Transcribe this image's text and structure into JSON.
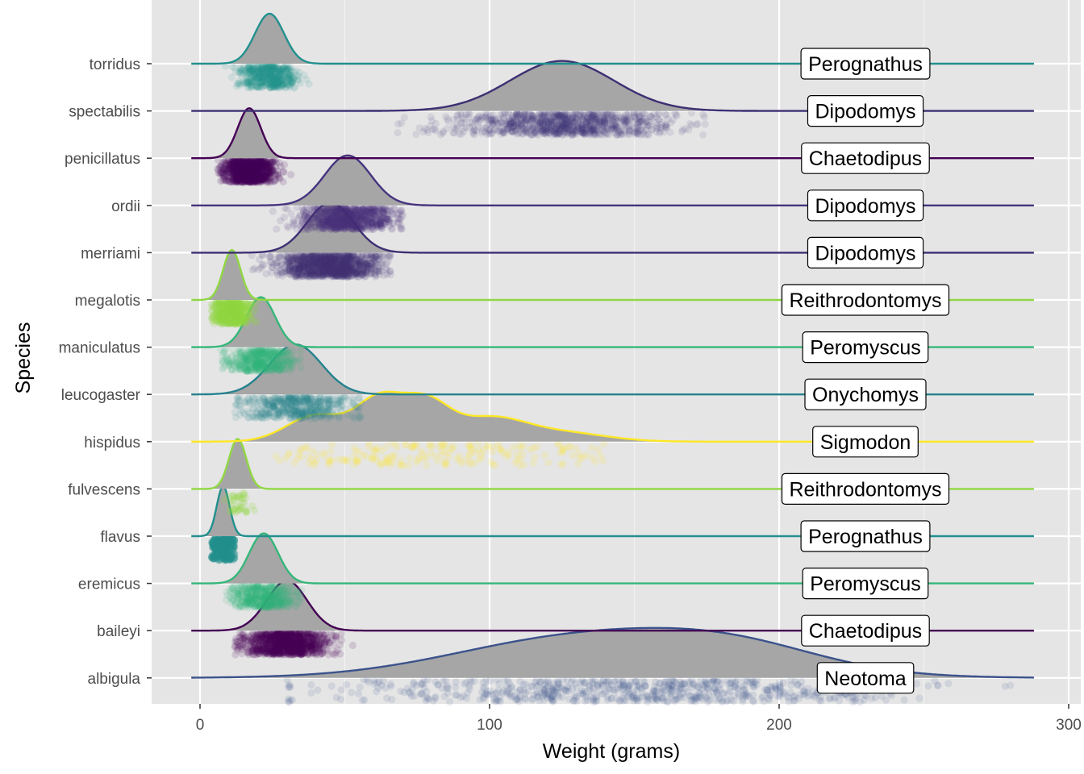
{
  "chart_data": {
    "type": "ridgeline",
    "xlabel": "Weight (grams)",
    "ylabel": "Species",
    "xlim": [
      -17,
      301
    ],
    "x_ticks": [
      0,
      100,
      200,
      300
    ],
    "x_tick_labels": [
      "0",
      "100",
      "200",
      "300"
    ],
    "grid": true,
    "background": "#e5e5e5",
    "density_fill": "#a6a6a6",
    "series": [
      {
        "species": "albigula",
        "genus": "Neotoma",
        "color": "#3b528b",
        "peaks": [
          [
            120,
            40,
            0.15
          ],
          [
            155,
            45,
            0.15
          ],
          [
            185,
            30,
            0.12
          ]
        ],
        "bandwidth": 10,
        "points_range": [
          30,
          280
        ],
        "opacity": 0.12,
        "n_points": 700
      },
      {
        "species": "baileyi",
        "genus": "Chaetodipus",
        "color": "#440154",
        "peaks": [
          [
            30,
            7,
            1.0
          ]
        ],
        "bandwidth": 7,
        "points_range": [
          12,
          56
        ],
        "opacity": 0.14,
        "n_points": 1000
      },
      {
        "species": "eremicus",
        "genus": "Peromyscus",
        "color": "#35b779",
        "peaks": [
          [
            22,
            5,
            1.0
          ]
        ],
        "bandwidth": 5,
        "points_range": [
          9,
          35
        ],
        "opacity": 0.12,
        "n_points": 500
      },
      {
        "species": "flavus",
        "genus": "Perognathus",
        "color": "#21908d",
        "peaks": [
          [
            8,
            2.2,
            1.0
          ]
        ],
        "bandwidth": 2.2,
        "points_range": [
          4,
          12
        ],
        "opacity": 0.35,
        "n_points": 300
      },
      {
        "species": "fulvescens",
        "genus": "Reithrodontomys",
        "color": "#90d743",
        "peaks": [
          [
            13,
            3,
            1.0
          ]
        ],
        "bandwidth": 3,
        "points_range": [
          7,
          20
        ],
        "opacity": 0.2,
        "n_points": 40
      },
      {
        "species": "hispidus",
        "genus": "Sigmodon",
        "color": "#fde725",
        "peaks": [
          [
            40,
            10,
            0.35
          ],
          [
            62,
            8,
            0.55
          ],
          [
            78,
            8,
            0.5
          ],
          [
            100,
            12,
            0.3
          ],
          [
            125,
            15,
            0.12
          ]
        ],
        "bandwidth": 8,
        "points_range": [
          20,
          140
        ],
        "opacity": 0.15,
        "n_points": 200
      },
      {
        "species": "leucogaster",
        "genus": "Onychomys",
        "color": "#26828e",
        "peaks": [
          [
            33,
            9,
            1.0
          ]
        ],
        "bandwidth": 9,
        "points_range": [
          12,
          56
        ],
        "opacity": 0.12,
        "n_points": 500
      },
      {
        "species": "maniculatus",
        "genus": "Peromyscus",
        "color": "#35b779",
        "peaks": [
          [
            21,
            5,
            1.0
          ]
        ],
        "bandwidth": 5,
        "points_range": [
          7,
          36
        ],
        "opacity": 0.12,
        "n_points": 500
      },
      {
        "species": "megalotis",
        "genus": "Reithrodontomys",
        "color": "#90d743",
        "peaks": [
          [
            11,
            3,
            1.0
          ]
        ],
        "bandwidth": 3,
        "points_range": [
          4,
          22
        ],
        "opacity": 0.2,
        "n_points": 500
      },
      {
        "species": "merriami",
        "genus": "Dipodomys",
        "color": "#3e2f73",
        "peaks": [
          [
            45,
            8,
            1.0
          ]
        ],
        "bandwidth": 8,
        "points_range": [
          16,
          66
        ],
        "opacity": 0.12,
        "n_points": 1200
      },
      {
        "species": "ordii",
        "genus": "Dipodomys",
        "color": "#46337e",
        "peaks": [
          [
            51,
            8,
            1.0
          ]
        ],
        "bandwidth": 8,
        "points_range": [
          20,
          70
        ],
        "opacity": 0.12,
        "n_points": 900
      },
      {
        "species": "penicillatus",
        "genus": "Chaetodipus",
        "color": "#440154",
        "peaks": [
          [
            17,
            4,
            1.0
          ]
        ],
        "bandwidth": 4,
        "points_range": [
          6,
          36
        ],
        "opacity": 0.15,
        "n_points": 900
      },
      {
        "species": "spectabilis",
        "genus": "Dipodomys",
        "color": "#3e2f73",
        "peaks": [
          [
            125,
            18,
            1.0
          ]
        ],
        "bandwidth": 18,
        "points_range": [
          40,
          175
        ],
        "opacity": 0.1,
        "n_points": 1000
      },
      {
        "species": "torridus",
        "genus": "Perognathus",
        "color": "#21908d",
        "peaks": [
          [
            24,
            5,
            1.0
          ]
        ],
        "bandwidth": 5,
        "points_range": [
          8,
          38
        ],
        "opacity": 0.12,
        "n_points": 500
      }
    ]
  }
}
